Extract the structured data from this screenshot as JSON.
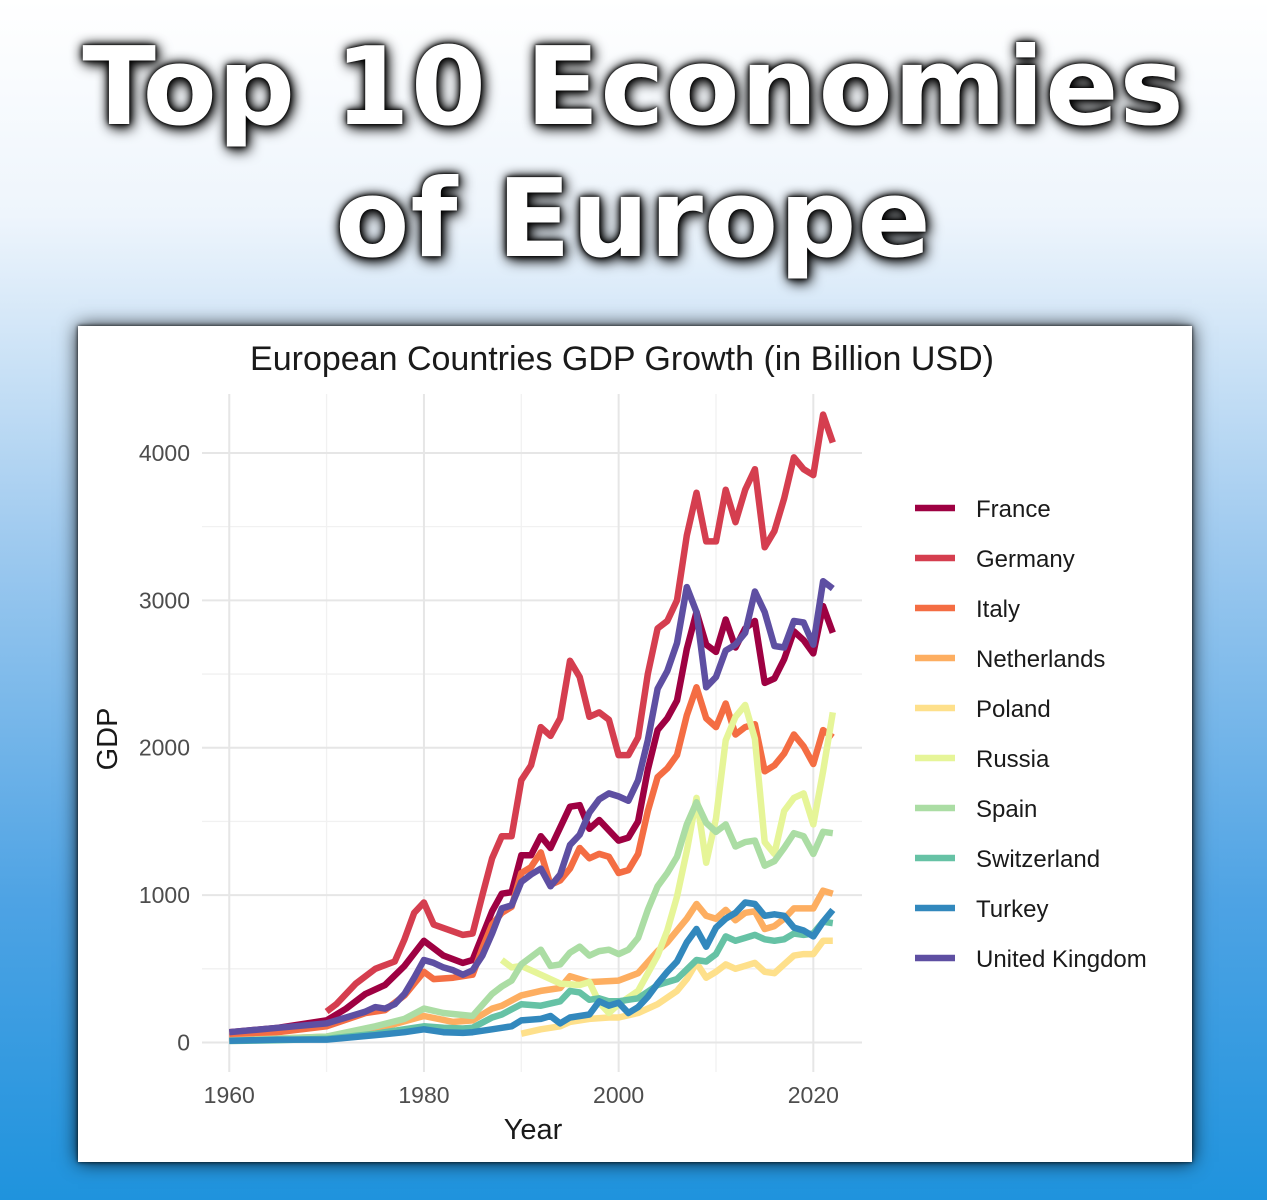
{
  "headline": {
    "line1": "Top 10 Economies",
    "line2": "of Europe"
  },
  "chart_data": {
    "type": "line",
    "title": "European Countries GDP Growth (in Billion USD)",
    "xlabel": "Year",
    "ylabel": "GDP",
    "xlim": [
      1960,
      2022
    ],
    "ylim": [
      -200,
      4400
    ],
    "xticks": [
      1960,
      1980,
      2000,
      2020
    ],
    "yticks": [
      0,
      1000,
      2000,
      3000,
      4000
    ],
    "grid": true,
    "legend": "right",
    "series": [
      {
        "name": "France",
        "color": "#9E0142",
        "x": [
          1960,
          1965,
          1970,
          1972,
          1974,
          1976,
          1978,
          1980,
          1982,
          1984,
          1985,
          1987,
          1988,
          1989,
          1990,
          1991,
          1992,
          1993,
          1995,
          1996,
          1997,
          1998,
          2000,
          2001,
          2002,
          2003,
          2004,
          2005,
          2006,
          2007,
          2008,
          2009,
          2010,
          2011,
          2012,
          2013,
          2014,
          2015,
          2016,
          2017,
          2018,
          2019,
          2020,
          2021,
          2022
        ],
        "y": [
          70,
          100,
          150,
          230,
          330,
          390,
          520,
          690,
          590,
          540,
          560,
          890,
          1010,
          1020,
          1270,
          1270,
          1400,
          1320,
          1600,
          1610,
          1450,
          1510,
          1370,
          1390,
          1500,
          1850,
          2120,
          2200,
          2320,
          2670,
          2920,
          2700,
          2650,
          2870,
          2680,
          2810,
          2860,
          2440,
          2470,
          2600,
          2790,
          2730,
          2640,
          2960,
          2780
        ]
      },
      {
        "name": "Germany",
        "color": "#D53E4F",
        "x": [
          1970,
          1971,
          1972,
          1973,
          1975,
          1977,
          1978,
          1979,
          1980,
          1981,
          1984,
          1985,
          1986,
          1987,
          1988,
          1989,
          1990,
          1991,
          1992,
          1993,
          1994,
          1995,
          1996,
          1997,
          1998,
          1999,
          2000,
          2001,
          2002,
          2003,
          2004,
          2005,
          2006,
          2007,
          2008,
          2009,
          2010,
          2011,
          2012,
          2013,
          2014,
          2015,
          2016,
          2017,
          2018,
          2019,
          2020,
          2021,
          2022
        ],
        "y": [
          210,
          260,
          330,
          400,
          500,
          550,
          700,
          880,
          950,
          800,
          730,
          740,
          1000,
          1250,
          1400,
          1400,
          1780,
          1880,
          2140,
          2080,
          2200,
          2590,
          2480,
          2210,
          2240,
          2190,
          1950,
          1950,
          2070,
          2500,
          2810,
          2860,
          3000,
          3440,
          3730,
          3400,
          3400,
          3750,
          3530,
          3750,
          3890,
          3360,
          3470,
          3690,
          3970,
          3890,
          3850,
          4260,
          4070
        ]
      },
      {
        "name": "Italy",
        "color": "#F46D43",
        "x": [
          1960,
          1965,
          1970,
          1974,
          1976,
          1978,
          1979,
          1980,
          1981,
          1983,
          1985,
          1986,
          1987,
          1988,
          1989,
          1990,
          1991,
          1992,
          1993,
          1994,
          1995,
          1996,
          1997,
          1998,
          1999,
          2000,
          2001,
          2002,
          2003,
          2004,
          2005,
          2006,
          2007,
          2008,
          2009,
          2010,
          2011,
          2012,
          2013,
          2014,
          2015,
          2016,
          2017,
          2018,
          2019,
          2020,
          2021,
          2022
        ],
        "y": [
          40,
          70,
          110,
          200,
          220,
          320,
          400,
          480,
          430,
          440,
          460,
          640,
          800,
          880,
          920,
          1150,
          1190,
          1290,
          1070,
          1100,
          1180,
          1320,
          1250,
          1280,
          1260,
          1150,
          1170,
          1280,
          1570,
          1800,
          1860,
          1950,
          2220,
          2410,
          2200,
          2140,
          2300,
          2090,
          2140,
          2160,
          1840,
          1880,
          1960,
          2090,
          2010,
          1890,
          2120,
          2070
        ]
      },
      {
        "name": "Netherlands",
        "color": "#FDAE61",
        "x": [
          1960,
          1970,
          1975,
          1980,
          1983,
          1985,
          1987,
          1988,
          1990,
          1992,
          1994,
          1995,
          1997,
          2000,
          2002,
          2004,
          2005,
          2007,
          2008,
          2009,
          2010,
          2011,
          2012,
          2013,
          2014,
          2015,
          2016,
          2017,
          2018,
          2019,
          2020,
          2021,
          2022
        ],
        "y": [
          15,
          40,
          90,
          180,
          140,
          150,
          230,
          250,
          320,
          350,
          370,
          450,
          410,
          420,
          470,
          620,
          680,
          840,
          940,
          860,
          840,
          900,
          830,
          880,
          890,
          770,
          790,
          840,
          910,
          910,
          910,
          1030,
          1010
        ]
      },
      {
        "name": "Poland",
        "color": "#FEE08B",
        "x": [
          1990,
          1992,
          1994,
          1995,
          1997,
          1999,
          2000,
          2002,
          2004,
          2006,
          2007,
          2008,
          2009,
          2010,
          2011,
          2012,
          2013,
          2014,
          2015,
          2016,
          2017,
          2018,
          2019,
          2020,
          2021,
          2022
        ],
        "y": [
          60,
          90,
          110,
          140,
          160,
          170,
          170,
          200,
          260,
          350,
          430,
          540,
          440,
          480,
          530,
          500,
          520,
          540,
          480,
          470,
          530,
          590,
          600,
          600,
          690,
          690
        ]
      },
      {
        "name": "Russia",
        "color": "#E6F598",
        "x": [
          1988,
          1989,
          1990,
          1992,
          1994,
          1996,
          1997,
          1998,
          1999,
          2000,
          2002,
          2004,
          2005,
          2006,
          2007,
          2008,
          2009,
          2010,
          2011,
          2012,
          2013,
          2014,
          2015,
          2016,
          2017,
          2018,
          2019,
          2020,
          2021,
          2022
        ],
        "y": [
          560,
          510,
          520,
          460,
          400,
          390,
          410,
          270,
          200,
          260,
          350,
          590,
          760,
          990,
          1300,
          1660,
          1220,
          1520,
          2050,
          2210,
          2290,
          2060,
          1360,
          1280,
          1570,
          1660,
          1690,
          1480,
          1840,
          2240
        ]
      },
      {
        "name": "Spain",
        "color": "#ABDDA4",
        "x": [
          1960,
          1965,
          1970,
          1975,
          1978,
          1980,
          1982,
          1985,
          1987,
          1988,
          1989,
          1990,
          1992,
          1993,
          1994,
          1995,
          1996,
          1997,
          1998,
          1999,
          2000,
          2001,
          2002,
          2003,
          2004,
          2005,
          2006,
          2007,
          2008,
          2009,
          2010,
          2011,
          2012,
          2013,
          2014,
          2015,
          2016,
          2017,
          2018,
          2019,
          2020,
          2021,
          2022
        ],
        "y": [
          12,
          25,
          40,
          110,
          160,
          230,
          200,
          180,
          330,
          380,
          420,
          530,
          630,
          520,
          530,
          610,
          650,
          590,
          620,
          630,
          600,
          630,
          710,
          900,
          1060,
          1150,
          1260,
          1480,
          1630,
          1490,
          1430,
          1480,
          1330,
          1360,
          1370,
          1200,
          1230,
          1320,
          1420,
          1400,
          1280,
          1430,
          1420
        ]
      },
      {
        "name": "Switzerland",
        "color": "#66C2A5",
        "x": [
          1960,
          1965,
          1970,
          1975,
          1980,
          1982,
          1984,
          1985,
          1987,
          1988,
          1990,
          1992,
          1994,
          1995,
          1996,
          1997,
          1998,
          1999,
          2000,
          2002,
          2004,
          2006,
          2008,
          2009,
          2010,
          2011,
          2012,
          2013,
          2014,
          2015,
          2016,
          2017,
          2018,
          2019,
          2020,
          2021,
          2022
        ],
        "y": [
          10,
          15,
          25,
          60,
          110,
          100,
          95,
          100,
          170,
          190,
          260,
          250,
          280,
          350,
          340,
          290,
          300,
          280,
          280,
          300,
          390,
          430,
          560,
          550,
          600,
          720,
          690,
          710,
          730,
          700,
          690,
          700,
          740,
          730,
          740,
          820,
          810
        ]
      },
      {
        "name": "Turkey",
        "color": "#3288BD",
        "x": [
          1960,
          1965,
          1970,
          1975,
          1978,
          1980,
          1982,
          1984,
          1985,
          1987,
          1988,
          1989,
          1990,
          1992,
          1993,
          1994,
          1995,
          1996,
          1997,
          1998,
          1999,
          2000,
          2001,
          2002,
          2003,
          2004,
          2005,
          2006,
          2007,
          2008,
          2009,
          2010,
          2011,
          2012,
          2013,
          2014,
          2015,
          2016,
          2017,
          2018,
          2019,
          2020,
          2021,
          2022
        ],
        "y": [
          12,
          20,
          20,
          50,
          70,
          90,
          70,
          65,
          70,
          90,
          100,
          110,
          150,
          160,
          180,
          130,
          170,
          180,
          190,
          280,
          250,
          270,
          200,
          240,
          310,
          400,
          480,
          550,
          680,
          770,
          650,
          780,
          840,
          880,
          950,
          940,
          860,
          870,
          860,
          780,
          760,
          720,
          820,
          900
        ]
      },
      {
        "name": "United Kingdom",
        "color": "#5E4FA2",
        "x": [
          1960,
          1965,
          1970,
          1972,
          1974,
          1975,
          1976,
          1977,
          1978,
          1979,
          1980,
          1981,
          1982,
          1983,
          1984,
          1985,
          1986,
          1987,
          1988,
          1989,
          1990,
          1991,
          1992,
          1993,
          1994,
          1995,
          1996,
          1997,
          1998,
          1999,
          2000,
          2001,
          2002,
          2003,
          2004,
          2005,
          2006,
          2007,
          2008,
          2009,
          2010,
          2011,
          2012,
          2013,
          2014,
          2015,
          2016,
          2017,
          2018,
          2019,
          2020,
          2021,
          2022
        ],
        "y": [
          70,
          100,
          130,
          170,
          210,
          240,
          230,
          260,
          330,
          440,
          560,
          540,
          510,
          490,
          460,
          490,
          590,
          740,
          910,
          930,
          1090,
          1140,
          1180,
          1060,
          1140,
          1340,
          1410,
          1560,
          1650,
          1690,
          1670,
          1640,
          1780,
          2050,
          2400,
          2520,
          2710,
          3090,
          2920,
          2410,
          2480,
          2660,
          2700,
          2780,
          3060,
          2920,
          2690,
          2680,
          2860,
          2850,
          2700,
          3130,
          3080
        ]
      }
    ]
  }
}
